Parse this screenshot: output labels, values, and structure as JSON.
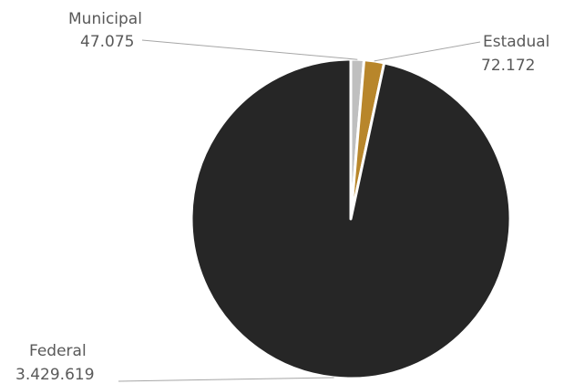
{
  "chart_data": {
    "type": "pie",
    "title": "",
    "slices": [
      {
        "name": "Municipal",
        "value": 47075,
        "display": "47.075",
        "color": "#bfbfbf"
      },
      {
        "name": "Estadual",
        "value": 72172,
        "display": "72.172",
        "color": "#b8862b"
      },
      {
        "name": "Federal",
        "value": 3429619,
        "display": "3.429.619",
        "color": "#262626"
      }
    ],
    "legend": "none",
    "labels": "outside-with-leader-lines"
  }
}
